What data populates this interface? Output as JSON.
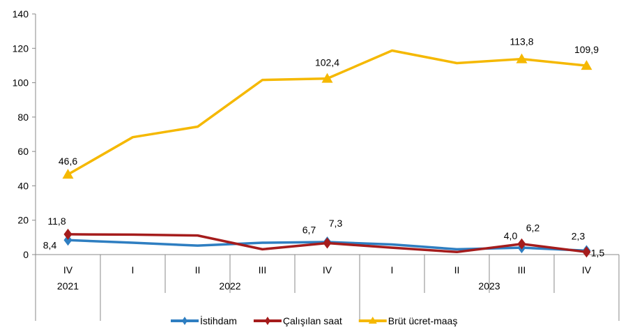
{
  "chart_data": {
    "type": "line",
    "title": "",
    "xlabel": "",
    "ylabel": "",
    "ylim": [
      0,
      140
    ],
    "yticks": [
      "0",
      "20",
      "40",
      "60",
      "80",
      "100",
      "120",
      "140"
    ],
    "grid": false,
    "legend_position": "bottom",
    "categories": [
      "IV",
      "I",
      "II",
      "III",
      "IV",
      "I",
      "II",
      "III",
      "IV"
    ],
    "years": [
      {
        "label": "2021",
        "span": 1
      },
      {
        "label": "2022",
        "span": 4
      },
      {
        "label": "2023",
        "span": 4
      }
    ],
    "series": [
      {
        "name": "İstihdam",
        "color": "#2E7EC1",
        "marker": "diamond",
        "values": [
          8.4,
          6.9,
          5.2,
          6.9,
          7.3,
          5.9,
          3.1,
          4.0,
          2.3
        ],
        "labels": [
          "8,4",
          "",
          "",
          "",
          "7,3",
          "",
          "",
          "4,0",
          "2,3"
        ]
      },
      {
        "name": "Çalışılan saat",
        "color": "#A51C1C",
        "marker": "diamond",
        "values": [
          11.8,
          11.6,
          11.1,
          3.1,
          6.7,
          4.0,
          1.5,
          6.2,
          1.5
        ],
        "labels": [
          "11,8",
          "",
          "",
          "",
          "6,7",
          "",
          "",
          "6,2",
          "1,5"
        ]
      },
      {
        "name": "Brüt ücret-maaş",
        "color": "#F5B800",
        "marker": "triangle",
        "values": [
          46.6,
          68.3,
          74.4,
          101.6,
          102.4,
          118.7,
          111.4,
          113.8,
          109.9
        ],
        "labels": [
          "46,6",
          "",
          "",
          "",
          "102,4",
          "",
          "",
          "113,8",
          "109,9"
        ]
      }
    ]
  }
}
